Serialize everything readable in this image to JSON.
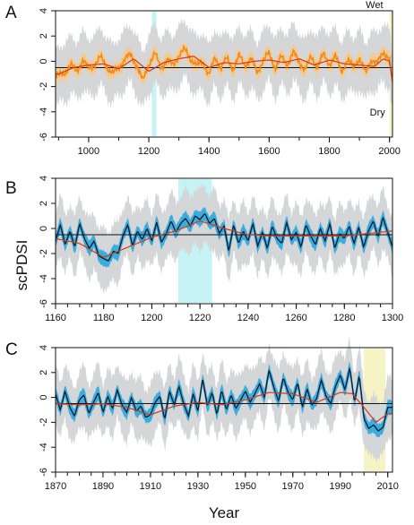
{
  "figure": {
    "ylabel": "scPDSI",
    "xlabel": "Year"
  },
  "chart_data": [
    {
      "type": "line",
      "panel": "A",
      "xlim": [
        890,
        2010
      ],
      "ylim": [
        -6,
        4
      ],
      "xticks": [
        1000,
        1200,
        1400,
        1600,
        1800,
        2000
      ],
      "yticks": [
        -6,
        -4,
        -2,
        0,
        2,
        4
      ],
      "reference_line": -0.5,
      "highlight_bands": [
        {
          "from": 1210,
          "to": 1225,
          "color": "#c6f4f6"
        },
        {
          "from": 2000,
          "to": 2010,
          "color": "#f6f3c4"
        }
      ],
      "annotations": [
        {
          "text": "Wet",
          "x": 1950,
          "y": 4.2
        },
        {
          "text": "Dry",
          "x": 1960,
          "y": -4.3
        }
      ],
      "series": [
        {
          "role": "annual",
          "color": "#f08a1c",
          "x": [
            900,
            920,
            940,
            960,
            980,
            1000,
            1020,
            1040,
            1060,
            1080,
            1100,
            1120,
            1140,
            1160,
            1180,
            1200,
            1220,
            1240,
            1260,
            1280,
            1300,
            1320,
            1340,
            1360,
            1380,
            1400,
            1420,
            1440,
            1460,
            1480,
            1500,
            1520,
            1540,
            1560,
            1580,
            1600,
            1620,
            1640,
            1660,
            1680,
            1700,
            1720,
            1740,
            1760,
            1780,
            1800,
            1820,
            1840,
            1860,
            1880,
            1900,
            1920,
            1940,
            1960,
            1980,
            2000,
            2010
          ],
          "values": [
            -1.2,
            -0.9,
            -0.3,
            -0.8,
            0.1,
            -0.6,
            -0.2,
            0.3,
            -0.4,
            -1.0,
            -0.5,
            0.2,
            0.5,
            -0.3,
            -1.6,
            -0.2,
            0.6,
            -0.5,
            0.1,
            -0.3,
            0.5,
            0.9,
            0.2,
            -0.4,
            0.0,
            -1.1,
            0.3,
            -0.5,
            0.2,
            -0.6,
            0.4,
            -0.3,
            0.2,
            -0.9,
            0.1,
            0.6,
            -0.5,
            0.3,
            -0.2,
            0.7,
            -0.1,
            -0.6,
            0.3,
            -0.4,
            0.5,
            -0.2,
            0.4,
            -0.8,
            0.1,
            -0.5,
            0.3,
            -1.0,
            0.2,
            -0.2,
            0.8,
            0.2,
            -2.0
          ]
        },
        {
          "role": "smoothed",
          "color": "#d63a1a",
          "x": [
            900,
            950,
            1000,
            1050,
            1100,
            1150,
            1200,
            1250,
            1300,
            1350,
            1400,
            1450,
            1500,
            1550,
            1600,
            1650,
            1700,
            1750,
            1800,
            1850,
            1900,
            1950,
            1980,
            2000,
            2010
          ],
          "values": [
            -1.0,
            -0.5,
            -0.3,
            -0.2,
            -0.6,
            0.2,
            -0.8,
            -0.1,
            0.2,
            0.4,
            -0.5,
            -0.1,
            -0.2,
            0.0,
            0.1,
            -0.1,
            0.2,
            -0.3,
            0.1,
            -0.2,
            -0.3,
            -0.4,
            0.2,
            0.0,
            -1.5
          ]
        }
      ]
    },
    {
      "type": "line",
      "panel": "B",
      "xlim": [
        1160,
        1300
      ],
      "ylim": [
        -6,
        4
      ],
      "xticks": [
        1160,
        1180,
        1200,
        1220,
        1240,
        1260,
        1280,
        1300
      ],
      "yticks": [
        -6,
        -4,
        -2,
        0,
        2,
        4
      ],
      "reference_line": -0.5,
      "highlight_bands": [
        {
          "from": 1211,
          "to": 1225,
          "color": "#c6f4f6"
        }
      ],
      "series": [
        {
          "role": "annual",
          "color": "#0b1a2a",
          "x": [
            1160,
            1162,
            1164,
            1166,
            1168,
            1170,
            1172,
            1174,
            1176,
            1178,
            1180,
            1182,
            1184,
            1186,
            1188,
            1190,
            1192,
            1194,
            1196,
            1198,
            1200,
            1202,
            1204,
            1206,
            1208,
            1210,
            1212,
            1214,
            1216,
            1218,
            1220,
            1222,
            1224,
            1226,
            1228,
            1230,
            1232,
            1234,
            1236,
            1238,
            1240,
            1242,
            1244,
            1246,
            1248,
            1250,
            1252,
            1254,
            1256,
            1258,
            1260,
            1262,
            1264,
            1266,
            1268,
            1270,
            1272,
            1274,
            1276,
            1278,
            1280,
            1282,
            1284,
            1286,
            1288,
            1290,
            1292,
            1294,
            1296,
            1298,
            1300
          ],
          "values": [
            -1.0,
            0.3,
            -1.3,
            -0.2,
            -1.5,
            0.4,
            -0.8,
            -1.6,
            -1.0,
            -2.2,
            -2.4,
            -2.6,
            -1.8,
            -2.0,
            -0.6,
            0.3,
            -1.4,
            -0.2,
            -0.9,
            0.0,
            -1.0,
            0.5,
            -1.1,
            -0.4,
            0.6,
            -0.3,
            0.4,
            0.8,
            0.2,
            1.0,
            0.7,
            1.2,
            0.4,
            0.8,
            -0.4,
            0.2,
            -1.8,
            0.3,
            -1.2,
            -0.2,
            -1.0,
            0.4,
            -1.4,
            -0.3,
            -1.6,
            0.2,
            -0.8,
            -1.2,
            0.5,
            -0.9,
            -0.3,
            -1.5,
            0.3,
            -0.6,
            -1.3,
            0.0,
            -1.0,
            0.4,
            -1.6,
            -0.4,
            -0.8,
            0.2,
            -1.2,
            0.1,
            -1.5,
            -0.2,
            0.6,
            -0.7,
            0.9,
            -0.3,
            -1.5
          ]
        },
        {
          "role": "smoothed",
          "color": "#d63a1a",
          "x": [
            1160,
            1170,
            1180,
            1190,
            1200,
            1210,
            1220,
            1230,
            1240,
            1250,
            1260,
            1270,
            1280,
            1290,
            1300
          ],
          "values": [
            -0.8,
            -1.2,
            -2.3,
            -1.5,
            -0.7,
            -0.2,
            0.6,
            0.0,
            -0.5,
            -0.6,
            -0.6,
            -0.6,
            -0.6,
            -0.4,
            -0.2
          ]
        }
      ]
    },
    {
      "type": "line",
      "panel": "C",
      "xlim": [
        1870,
        2012
      ],
      "ylim": [
        -6,
        4
      ],
      "xticks": [
        1870,
        1890,
        1910,
        1930,
        1950,
        1970,
        1990,
        2010
      ],
      "yticks": [
        -6,
        -4,
        -2,
        0,
        2,
        4
      ],
      "reference_line": -0.5,
      "highlight_bands": [
        {
          "from": 2000,
          "to": 2009,
          "color": "#f6f3c4"
        }
      ],
      "series": [
        {
          "role": "annual",
          "color": "#0b1a2a",
          "x": [
            1870,
            1872,
            1874,
            1876,
            1878,
            1880,
            1882,
            1884,
            1886,
            1888,
            1890,
            1892,
            1894,
            1896,
            1898,
            1900,
            1902,
            1904,
            1906,
            1908,
            1910,
            1912,
            1914,
            1916,
            1918,
            1920,
            1922,
            1924,
            1926,
            1928,
            1930,
            1932,
            1934,
            1936,
            1938,
            1940,
            1942,
            1944,
            1946,
            1948,
            1950,
            1952,
            1954,
            1956,
            1958,
            1960,
            1962,
            1964,
            1966,
            1968,
            1970,
            1972,
            1974,
            1976,
            1978,
            1980,
            1982,
            1984,
            1986,
            1988,
            1990,
            1992,
            1994,
            1996,
            1998,
            2000,
            2002,
            2004,
            2006,
            2008,
            2010
          ],
          "values": [
            0.3,
            -1.0,
            0.5,
            -0.8,
            -1.5,
            -0.2,
            0.2,
            -1.3,
            -0.4,
            0.4,
            -1.2,
            0.1,
            -0.9,
            0.6,
            -0.6,
            -1.2,
            0.0,
            -1.1,
            -0.7,
            -1.6,
            -1.4,
            -0.4,
            0.1,
            -1.8,
            0.5,
            -0.6,
            0.9,
            -0.5,
            -1.5,
            0.3,
            -1.1,
            1.5,
            -0.7,
            0.4,
            -1.4,
            0.6,
            -1.0,
            0.2,
            -0.9,
            -0.2,
            0.5,
            -0.4,
            0.3,
            1.1,
            0.0,
            2.2,
            0.8,
            -0.3,
            1.6,
            0.4,
            -0.2,
            1.2,
            -0.8,
            0.7,
            -0.6,
            -0.1,
            1.4,
            0.1,
            -0.5,
            0.9,
            1.8,
            0.6,
            2.4,
            -0.4,
            1.8,
            -1.7,
            -2.5,
            -2.2,
            -2.7,
            -2.4,
            -0.8
          ]
        },
        {
          "role": "smoothed",
          "color": "#d63a1a",
          "x": [
            1870,
            1880,
            1890,
            1900,
            1910,
            1920,
            1930,
            1940,
            1950,
            1960,
            1970,
            1980,
            1990,
            1995,
            2000,
            2005,
            2010
          ],
          "values": [
            -0.5,
            -0.6,
            -0.5,
            -0.8,
            -1.4,
            -0.7,
            -0.4,
            -0.6,
            -0.2,
            0.4,
            0.3,
            -0.4,
            0.4,
            0.3,
            -0.8,
            -2.0,
            -1.3
          ]
        }
      ]
    }
  ]
}
